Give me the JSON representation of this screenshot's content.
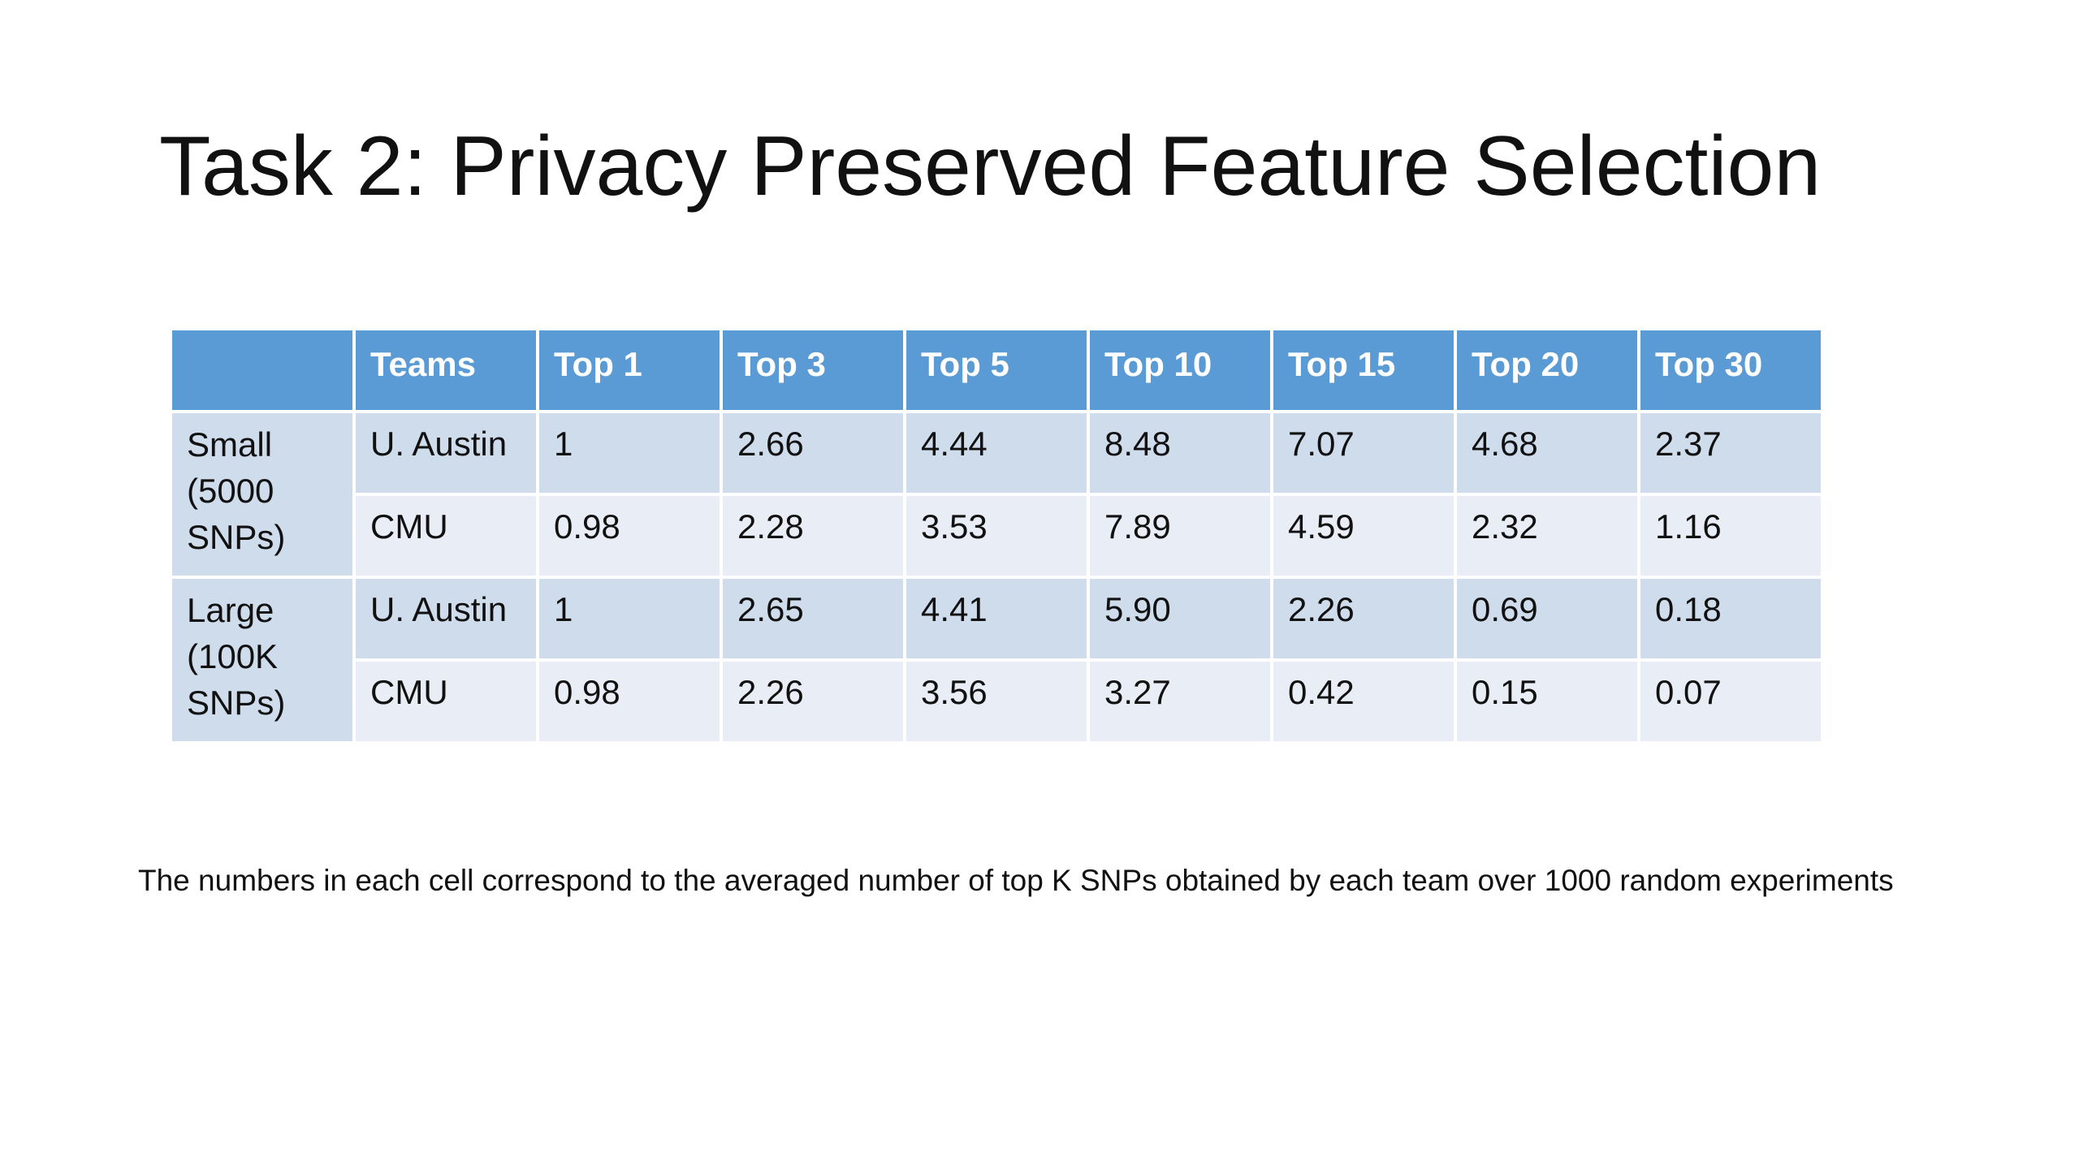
{
  "slide": {
    "title": "Task 2: Privacy Preserved Feature Selection",
    "footnote": "The numbers in each cell correspond to the averaged number of top K SNPs obtained by each team over 1000 random experiments"
  },
  "table": {
    "headers": [
      "",
      "Teams",
      "Top 1",
      "Top 3",
      "Top 5",
      "Top 10",
      "Top 15",
      "Top 20",
      "Top 30"
    ],
    "groups": [
      {
        "label": "Small (5000 SNPs)",
        "rows": [
          {
            "team": "U. Austin",
            "values": [
              "1",
              "2.66",
              "4.44",
              "8.48",
              "7.07",
              "4.68",
              "2.37"
            ]
          },
          {
            "team": "CMU",
            "values": [
              "0.98",
              "2.28",
              "3.53",
              "7.89",
              "4.59",
              "2.32",
              "1.16"
            ]
          }
        ]
      },
      {
        "label": "Large (100K SNPs)",
        "rows": [
          {
            "team": "U. Austin",
            "values": [
              "1",
              "2.65",
              "4.41",
              "5.90",
              "2.26",
              "0.69",
              "0.18"
            ]
          },
          {
            "team": "CMU",
            "values": [
              "0.98",
              "2.26",
              "3.56",
              "3.27",
              "0.42",
              "0.15",
              "0.07"
            ]
          }
        ]
      }
    ]
  },
  "colors": {
    "header_bg": "#5b9bd5",
    "row_dark": "#cfdcec",
    "row_light": "#e8edf6"
  }
}
